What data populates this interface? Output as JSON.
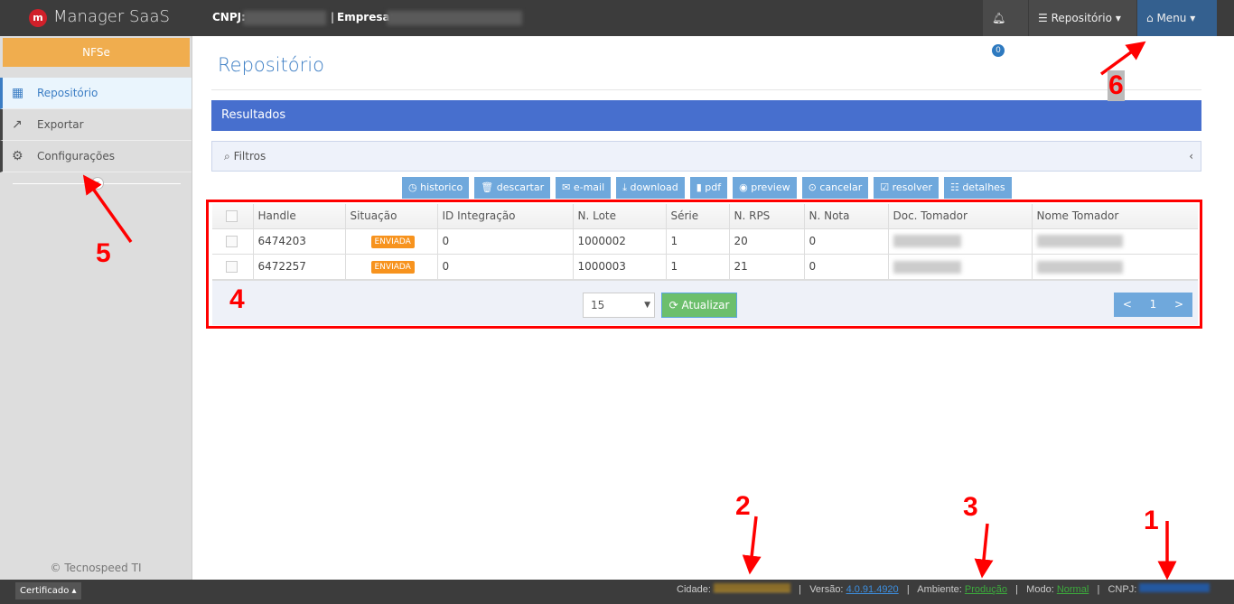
{
  "header": {
    "app_title": "Manager SaaS",
    "logo_letter": "m",
    "cnpj_label": "CNPJ:",
    "separator": "|",
    "empresa_label": "Empresa:",
    "notification_count": "0",
    "repositorio_label": "Repositório",
    "menu_label": "Menu"
  },
  "sidebar": {
    "module": "NFSe",
    "items": [
      {
        "label": "Repositório",
        "icon": "table-icon"
      },
      {
        "label": "Exportar",
        "icon": "external-link-icon"
      },
      {
        "label": "Configurações",
        "icon": "gear-icon"
      }
    ],
    "copyright": "© Tecnospeed TI"
  },
  "main": {
    "title": "Repositório",
    "results_label": "Resultados",
    "filters_label": "Filtros",
    "actions": [
      "historico",
      "descartar",
      "e-mail",
      "download",
      "pdf",
      "preview",
      "cancelar",
      "resolver",
      "detalhes"
    ],
    "table": {
      "columns": [
        "Handle",
        "Situação",
        "ID Integração",
        "N. Lote",
        "Série",
        "N. RPS",
        "N. Nota",
        "Doc. Tomador",
        "Nome Tomador"
      ],
      "rows": [
        [
          "6474203",
          "ENVIADA",
          "0",
          "1000002",
          "1",
          "20",
          "0"
        ],
        [
          "6472257",
          "ENVIADA",
          "0",
          "1000003",
          "1",
          "21",
          "0"
        ]
      ]
    },
    "page_size": "15",
    "refresh_label": "Atualizar",
    "pagination": {
      "prev": "<",
      "current": "1",
      "next": ">"
    }
  },
  "footer": {
    "cert_label": "Certificado ▴",
    "cidade_label": "Cidade:",
    "versao_label": "Versão:",
    "versao": "4.0.91.4920",
    "ambiente_label": "Ambiente:",
    "ambiente": "Produção",
    "modo_label": "Modo:",
    "modo": "Normal",
    "cnpj_label": "CNPJ:",
    "sep": "|"
  },
  "annotations": [
    "1",
    "2",
    "3",
    "4",
    "5",
    "6"
  ],
  "colors": {
    "accent": "#3b7dc4",
    "results_bar": "#476fce",
    "action_button": "#6fa8dc",
    "badge": "#f7931e",
    "refresh": "#6cbf6c",
    "annotation": "#ff0000"
  }
}
